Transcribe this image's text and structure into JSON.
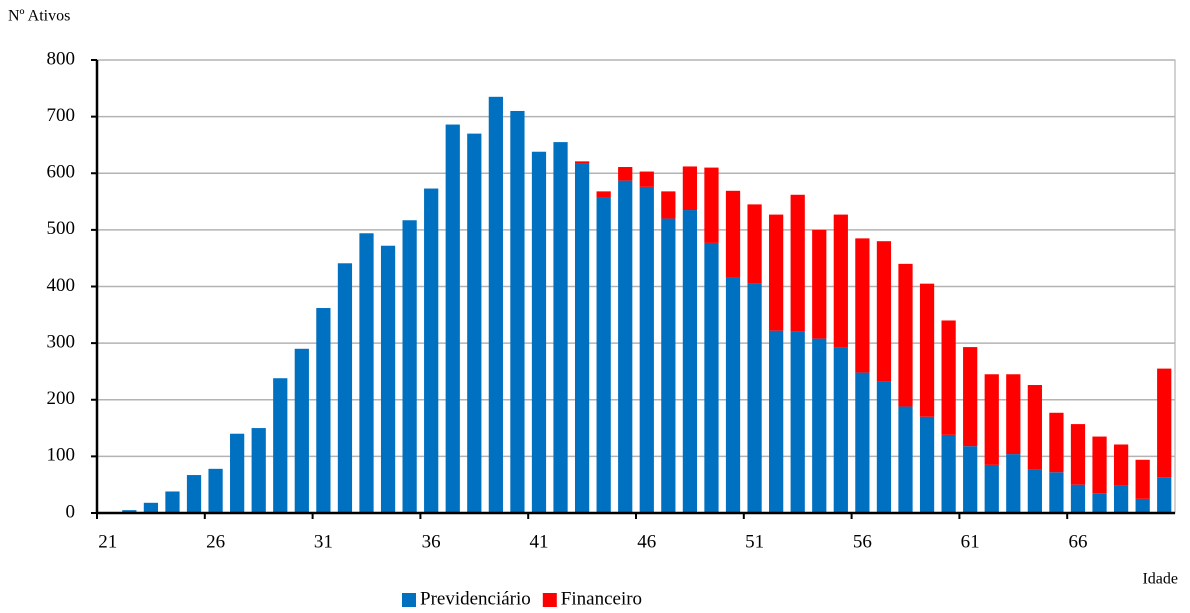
{
  "chart_data": {
    "type": "stacked-bar",
    "y_label": "Nº Ativos",
    "x_label": "Idade",
    "categories": [
      "21",
      null,
      null,
      null,
      null,
      "26",
      null,
      null,
      null,
      null,
      "31",
      null,
      null,
      null,
      null,
      "36",
      null,
      null,
      null,
      null,
      "41",
      null,
      null,
      null,
      null,
      "46",
      null,
      null,
      null,
      null,
      "51",
      null,
      null,
      null,
      null,
      "56",
      null,
      null,
      null,
      null,
      "61",
      null,
      null,
      null,
      null,
      "66",
      null,
      null,
      null,
      null
    ],
    "series": [
      {
        "name": "Previdenciário",
        "color": "#0070c0",
        "values": [
          0,
          5,
          18,
          38,
          67,
          78,
          140,
          150,
          238,
          290,
          362,
          441,
          494,
          472,
          517,
          573,
          686,
          670,
          735,
          710,
          638,
          655,
          618,
          558,
          587,
          576,
          520,
          535,
          477,
          416,
          405,
          322,
          320,
          308,
          292,
          248,
          233,
          188,
          170,
          138,
          118,
          85,
          104,
          77,
          72,
          50,
          35,
          48,
          25,
          63
        ]
      },
      {
        "name": "Financeiro",
        "color": "#ff0000",
        "values": [
          0,
          0,
          0,
          0,
          0,
          0,
          0,
          0,
          0,
          0,
          0,
          0,
          0,
          0,
          0,
          0,
          0,
          0,
          0,
          0,
          0,
          0,
          3,
          10,
          24,
          27,
          48,
          77,
          133,
          153,
          140,
          205,
          242,
          192,
          235,
          237,
          247,
          252,
          235,
          202,
          175,
          160,
          141,
          149,
          105,
          107,
          100,
          73,
          69,
          192
        ]
      }
    ],
    "ylim": [
      0,
      800
    ],
    "yticks": [
      0,
      100,
      200,
      300,
      400,
      500,
      600,
      700,
      800
    ],
    "grid": true,
    "legend": "bottom"
  }
}
